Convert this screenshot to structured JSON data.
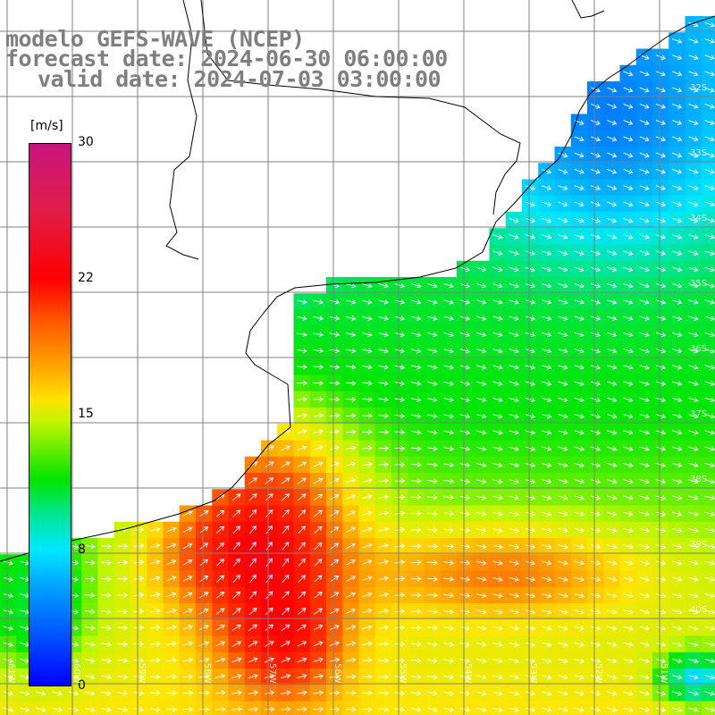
{
  "header": {
    "model_line": "modelo GEFS-WAVE (NCEP)",
    "forecast_line": "forecast date: 2024-06-30 06:00:00",
    "valid_line": "valid date: 2024-07-03 03:00:00"
  },
  "colorbar": {
    "unit": "[m/s]",
    "ticks": [
      {
        "value": 30,
        "label": "30"
      },
      {
        "value": 22,
        "label": "22"
      },
      {
        "value": 15,
        "label": "15"
      },
      {
        "value": 8,
        "label": "8"
      },
      {
        "value": 0,
        "label": "0"
      }
    ],
    "colors": [
      "#0000ff",
      "#00e8ff",
      "#00e400",
      "#ffe000",
      "#ff9a00",
      "#ff0000",
      "#c8147e"
    ]
  },
  "latitude_labels": [
    "32S",
    "33S",
    "34S",
    "35S",
    "36S",
    "37S",
    "38S",
    "39S",
    "40S"
  ],
  "longitude_labels": [
    "61W",
    "60W",
    "59W",
    "58W",
    "57W",
    "56W",
    "55W",
    "54W",
    "53W",
    "52W",
    "51W"
  ],
  "map": {
    "variable": "wind speed",
    "land_color": "#ffffff",
    "grid_line_color": "#808080",
    "coast_color": "#000000",
    "arrow_color": "#ffffff"
  }
}
